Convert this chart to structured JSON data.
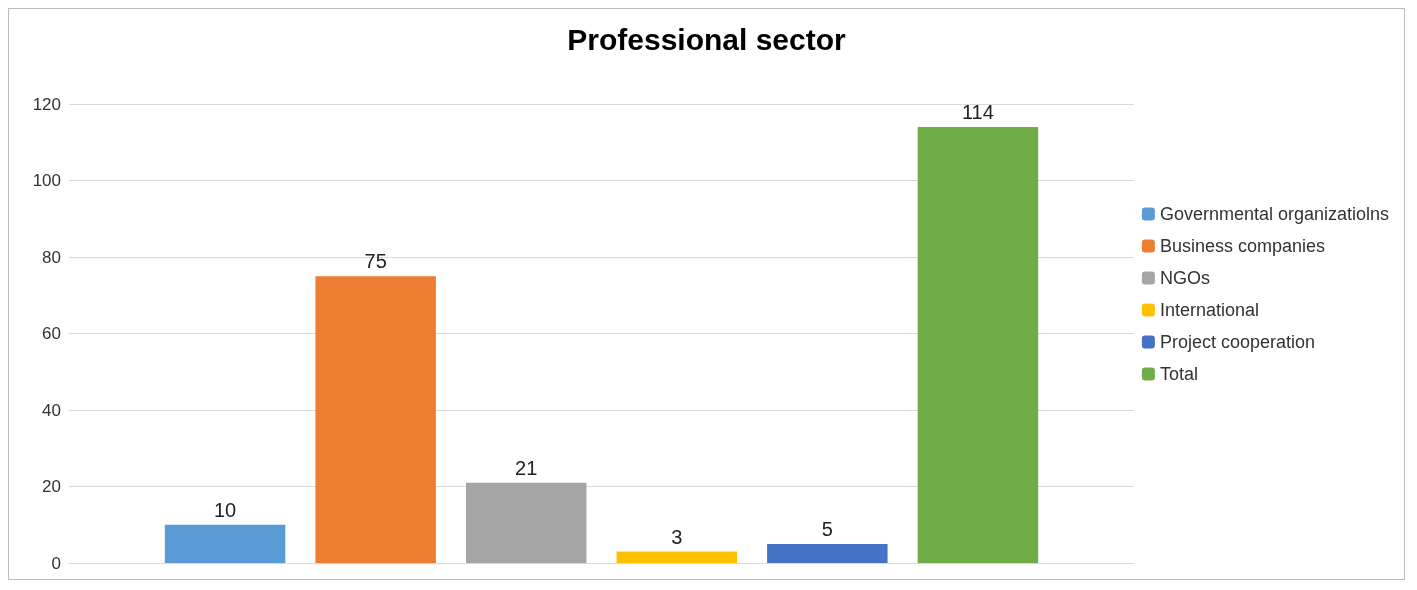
{
  "chart_data": {
    "type": "bar",
    "title": "Professional sector",
    "categories": [
      null
    ],
    "series": [
      {
        "name": "Governmental organizatiolns",
        "color": "#5b9bd5",
        "values": [
          10
        ]
      },
      {
        "name": "Business companies",
        "color": "#ed7d31",
        "values": [
          75
        ]
      },
      {
        "name": "NGOs",
        "color": "#a5a5a5",
        "values": [
          21
        ]
      },
      {
        "name": "International",
        "color": "#ffc000",
        "values": [
          3
        ]
      },
      {
        "name": "Project cooperation",
        "color": "#4472c4",
        "values": [
          5
        ]
      },
      {
        "name": "Total",
        "color": "#70ad47",
        "values": [
          114
        ]
      }
    ],
    "ylim": [
      0,
      120
    ],
    "yticks": [
      0,
      20,
      40,
      60,
      80,
      100,
      120
    ],
    "grid": "y",
    "legend": "right",
    "data_labels": true
  }
}
